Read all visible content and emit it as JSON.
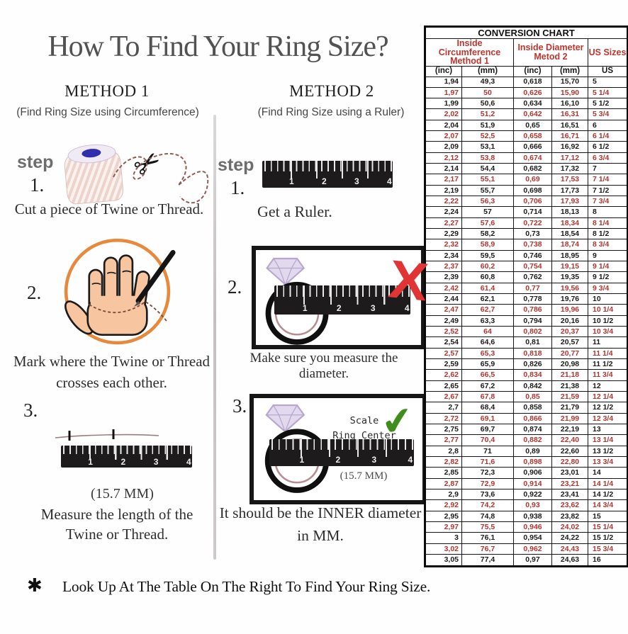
{
  "page": {
    "title": "How To Find Your Ring Size?",
    "footnote_symbol": "✱",
    "footnote_text": "Look Up At The Table On The Right To Find Your Ring Size."
  },
  "icons": {
    "scissors": "✂",
    "wrong_mark": "X",
    "check_mark": "✔"
  },
  "ruler_numbers": [
    "1",
    "2",
    "3",
    "4"
  ],
  "method1": {
    "title": "METHOD 1",
    "subtitle": "(Find Ring Size using Circumference)",
    "step_word": "step",
    "step1_num": "1.",
    "step1_caption": "Cut a piece of Twine or Thread.",
    "step2_num": "2.",
    "step2_caption_line1": "Mark where the Twine or Thread",
    "step2_caption_line2": "crosses each other.",
    "step3_num": "3.",
    "step3_measurement": "(15.7 MM)",
    "step3_caption_line1": "Measure the length of the",
    "step3_caption_line2": "Twine or Thread."
  },
  "method2": {
    "title": "METHOD 2",
    "subtitle": "(Find Ring Size using a Ruler)",
    "step_word": "step",
    "step1_num": "1.",
    "step1_caption": "Get a Ruler.",
    "step2_num": "2.",
    "step2_caption": "Make sure you measure the diameter.",
    "step3_num": "3.",
    "scale_label_line1": "Scale",
    "scale_label_line2": "Ring Center",
    "step3_measurement": "(15.7 MM)",
    "step3_caption_line1": "It should be the INNER diameter",
    "step3_caption_line2": "in MM."
  },
  "conversion_chart": {
    "title": "CONVERSION CHART",
    "group_headers": {
      "circumference_line1": "Inside Circumference",
      "circumference_line2": "Method 1",
      "diameter_line1": "Inside Diameter",
      "diameter_line2": "Metod 2",
      "us_sizes": "US Sizes"
    },
    "sub_headers": [
      "(inc)",
      "(mm)",
      "(inc)",
      "(mm)",
      "US"
    ],
    "rows": [
      {
        "c": [
          "1,94",
          "49,3",
          "0,618",
          "15,70",
          "5"
        ],
        "red": false
      },
      {
        "c": [
          "1,97",
          "50",
          "0,626",
          "15,90",
          "5 1/4"
        ],
        "red": true
      },
      {
        "c": [
          "1,99",
          "50,6",
          "0,634",
          "16,10",
          "5 1/2"
        ],
        "red": false
      },
      {
        "c": [
          "2,02",
          "51,2",
          "0,642",
          "16,31",
          "5 3/4"
        ],
        "red": true
      },
      {
        "c": [
          "2,04",
          "51,9",
          "0,65",
          "16,51",
          "6"
        ],
        "red": false
      },
      {
        "c": [
          "2,07",
          "52,5",
          "0,658",
          "16,71",
          "6 1/4"
        ],
        "red": true
      },
      {
        "c": [
          "2,09",
          "53,1",
          "0,666",
          "16,92",
          "6 1/2"
        ],
        "red": false
      },
      {
        "c": [
          "2,12",
          "53,8",
          "0,674",
          "17,12",
          "6 3/4"
        ],
        "red": true
      },
      {
        "c": [
          "2,14",
          "54,4",
          "0,682",
          "17,32",
          "7"
        ],
        "red": false
      },
      {
        "c": [
          "2,17",
          "55,1",
          "0,69",
          "17,53",
          "7 1/4"
        ],
        "red": true
      },
      {
        "c": [
          "2,19",
          "55,7",
          "0,698",
          "17,73",
          "7 1/2"
        ],
        "red": false
      },
      {
        "c": [
          "2,22",
          "56,3",
          "0,706",
          "17,93",
          "7 3/4"
        ],
        "red": true
      },
      {
        "c": [
          "2,24",
          "57",
          "0,714",
          "18,13",
          "8"
        ],
        "red": false
      },
      {
        "c": [
          "2,27",
          "57,6",
          "0,722",
          "18,34",
          "8 1/4"
        ],
        "red": true
      },
      {
        "c": [
          "2,29",
          "58,2",
          "0,73",
          "18,54",
          "8 1/2"
        ],
        "red": false
      },
      {
        "c": [
          "2,32",
          "58,9",
          "0,738",
          "18,74",
          "8 3/4"
        ],
        "red": true
      },
      {
        "c": [
          "2,34",
          "59,5",
          "0,746",
          "18,95",
          "9"
        ],
        "red": false
      },
      {
        "c": [
          "2,37",
          "60,2",
          "0,754",
          "19,15",
          "9 1/4"
        ],
        "red": true
      },
      {
        "c": [
          "2,39",
          "60,8",
          "0,762",
          "19,35",
          "9 1/2"
        ],
        "red": false
      },
      {
        "c": [
          "2,42",
          "61,4",
          "0,77",
          "19,56",
          "9 3/4"
        ],
        "red": true
      },
      {
        "c": [
          "2,44",
          "62,1",
          "0,778",
          "19,76",
          "10"
        ],
        "red": false
      },
      {
        "c": [
          "2,47",
          "62,7",
          "0,786",
          "19,96",
          "10 1/4"
        ],
        "red": true
      },
      {
        "c": [
          "2,49",
          "63,3",
          "0,794",
          "20,16",
          "10 1/2"
        ],
        "red": false
      },
      {
        "c": [
          "2,52",
          "64",
          "0,802",
          "20,37",
          "10 3/4"
        ],
        "red": true
      },
      {
        "c": [
          "2,54",
          "64,6",
          "0,81",
          "20,57",
          "11"
        ],
        "red": false
      },
      {
        "c": [
          "2,57",
          "65,3",
          "0,818",
          "20,77",
          "11 1/4"
        ],
        "red": true
      },
      {
        "c": [
          "2,59",
          "65,9",
          "0,826",
          "20,98",
          "11 1/2"
        ],
        "red": false
      },
      {
        "c": [
          "2,62",
          "66,5",
          "0,834",
          "21,18",
          "11 3/4"
        ],
        "red": true
      },
      {
        "c": [
          "2,65",
          "67,2",
          "0,842",
          "21,38",
          "12"
        ],
        "red": false
      },
      {
        "c": [
          "2,67",
          "67,8",
          "0,85",
          "21,59",
          "12 1/4"
        ],
        "red": true
      },
      {
        "c": [
          "2,7",
          "68,4",
          "0,858",
          "21,79",
          "12 1/2"
        ],
        "red": false
      },
      {
        "c": [
          "2,72",
          "69,1",
          "0,866",
          "21,99",
          "12 3/4"
        ],
        "red": true
      },
      {
        "c": [
          "2,75",
          "69,7",
          "0,874",
          "22,19",
          "13"
        ],
        "red": false
      },
      {
        "c": [
          "2,77",
          "70,4",
          "0,882",
          "22,40",
          "13 1/4"
        ],
        "red": true
      },
      {
        "c": [
          "2,8",
          "71",
          "0,89",
          "22,60",
          "13 1/2"
        ],
        "red": false
      },
      {
        "c": [
          "2,82",
          "71,6",
          "0,898",
          "22,80",
          "13 3/4"
        ],
        "red": true
      },
      {
        "c": [
          "2,85",
          "72,3",
          "0,906",
          "23,01",
          "14"
        ],
        "red": false
      },
      {
        "c": [
          "2,87",
          "72,9",
          "0,914",
          "23,21",
          "14 1/4"
        ],
        "red": true
      },
      {
        "c": [
          "2,9",
          "73,6",
          "0,922",
          "23,41",
          "14 1/2"
        ],
        "red": false
      },
      {
        "c": [
          "2,92",
          "74,2",
          "0,93",
          "23,62",
          "14 3/4"
        ],
        "red": true
      },
      {
        "c": [
          "2,95",
          "74,8",
          "0,938",
          "23,82",
          "15"
        ],
        "red": false
      },
      {
        "c": [
          "2,97",
          "75,5",
          "0,946",
          "24,02",
          "15 1/4"
        ],
        "red": true
      },
      {
        "c": [
          "3",
          "76,1",
          "0,954",
          "24,22",
          "15 1/2"
        ],
        "red": false
      },
      {
        "c": [
          "3,02",
          "76,7",
          "0,962",
          "24,43",
          "15 3/4"
        ],
        "red": true
      },
      {
        "c": [
          "3,05",
          "77,4",
          "0,97",
          "24,63",
          "16"
        ],
        "red": false
      }
    ]
  },
  "colors": {
    "accent_red": "#b23630",
    "header_red": "#c0342c",
    "ring_band": "#b48e90",
    "diamond": "#e3d9ee",
    "hand_circle_orange": "#e8883a",
    "skin": "#f7c59f",
    "check_green": "#3f8d1d",
    "x_red": "#e13434",
    "ruler_dark": "#1d1b1b"
  }
}
